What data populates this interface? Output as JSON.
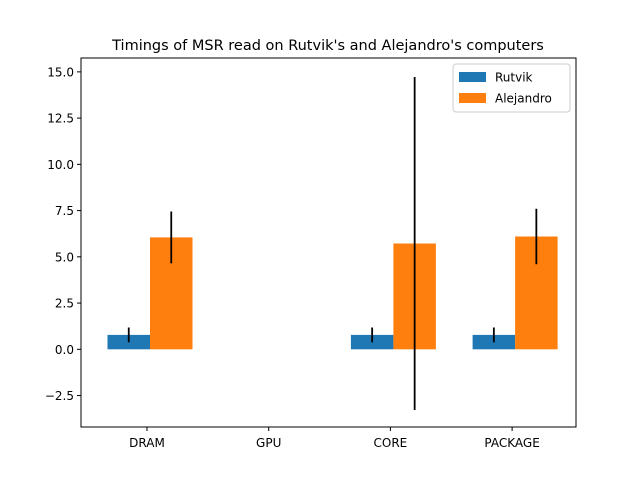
{
  "chart_data": {
    "type": "bar",
    "title": "Timings of MSR read on Rutvik's and Alejandro's computers",
    "xlabel": "",
    "ylabel": "",
    "categories": [
      "DRAM",
      "GPU",
      "CORE",
      "PACKAGE"
    ],
    "ylim": [
      -4.2,
      15.75
    ],
    "yticks": [
      -2.5,
      0.0,
      2.5,
      5.0,
      7.5,
      10.0,
      12.5,
      15.0
    ],
    "ytick_labels": [
      "−2.5",
      "0.0",
      "2.5",
      "5.0",
      "7.5",
      "10.0",
      "12.5",
      "15.0"
    ],
    "grid": false,
    "legend_position": "top-right",
    "series": [
      {
        "name": "Rutvik",
        "color": "#1f77b4",
        "values": [
          0.78,
          0.0,
          0.78,
          0.78
        ],
        "errors": [
          0.4,
          0.0,
          0.4,
          0.4
        ]
      },
      {
        "name": "Alejandro",
        "color": "#ff7f0e",
        "values": [
          6.05,
          0.0,
          5.72,
          6.1
        ],
        "errors": [
          1.4,
          0.0,
          9.0,
          1.5
        ]
      }
    ]
  }
}
